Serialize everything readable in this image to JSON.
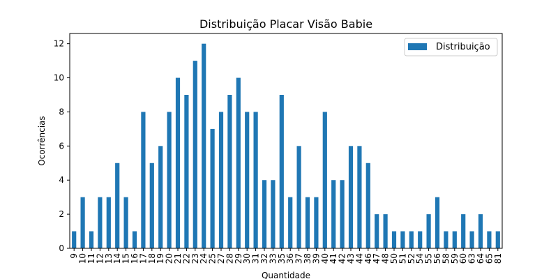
{
  "chart_data": {
    "type": "bar",
    "title": "Distribuição Placar Visão Babie",
    "xlabel": "Quantidade",
    "ylabel": "Ocorrências",
    "ylim": [
      0,
      12.6
    ],
    "yticks": [
      0,
      2,
      4,
      6,
      8,
      10,
      12
    ],
    "grid": false,
    "legend_position": "top-right",
    "bar_color": "#1f77b4",
    "categories": [
      "9",
      "10",
      "11",
      "12",
      "13",
      "14",
      "15",
      "16",
      "17",
      "18",
      "19",
      "20",
      "21",
      "22",
      "23",
      "24",
      "25",
      "27",
      "28",
      "29",
      "30",
      "31",
      "32",
      "33",
      "35",
      "36",
      "37",
      "38",
      "39",
      "40",
      "41",
      "42",
      "43",
      "44",
      "46",
      "47",
      "48",
      "50",
      "51",
      "52",
      "54",
      "55",
      "56",
      "58",
      "59",
      "60",
      "63",
      "64",
      "65",
      "81"
    ],
    "series": [
      {
        "name": "Distribuição",
        "values": [
          1,
          3,
          1,
          3,
          3,
          5,
          3,
          1,
          8,
          5,
          6,
          8,
          10,
          9,
          11,
          12,
          7,
          8,
          9,
          10,
          8,
          8,
          4,
          4,
          9,
          3,
          6,
          3,
          3,
          8,
          4,
          4,
          6,
          6,
          5,
          2,
          2,
          1,
          1,
          1,
          1,
          2,
          3,
          1,
          1,
          2,
          1,
          2,
          1,
          1
        ]
      }
    ]
  }
}
